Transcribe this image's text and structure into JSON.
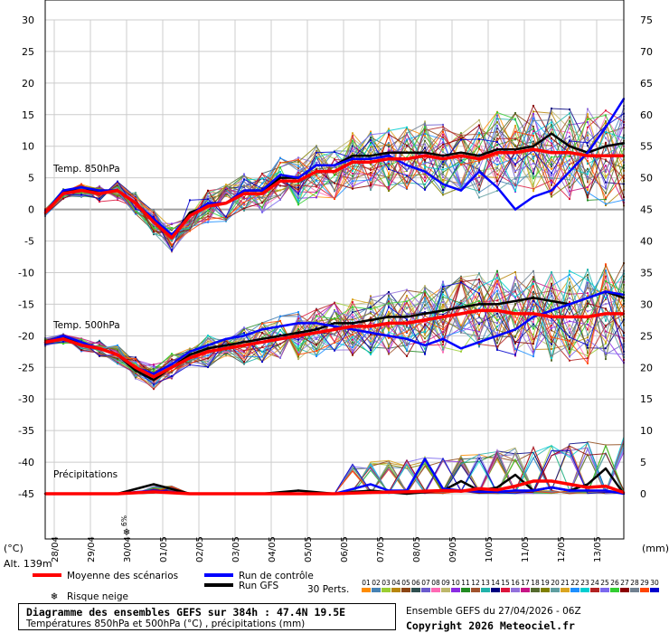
{
  "chart_data": {
    "type": "line",
    "title": "Diagramme des ensembles GEFS sur 384h : 47.4N 19.5E",
    "subtitle": "Températures 850hPa et 500hPa (°C) , précipitations (mm)",
    "run_info": "Ensemble GEFS du 27/04/2026 - 06Z",
    "copyright": "Copyright 2026 Meteociel.fr",
    "left_axis": {
      "unit_label": "(°C)",
      "ticks": [
        "30",
        "25",
        "20",
        "15",
        "10",
        "5",
        "0",
        "-5",
        "-10",
        "-15",
        "-20",
        "-25",
        "-30",
        "-35",
        "-40",
        "-45"
      ],
      "ylim": [
        -45,
        30
      ]
    },
    "right_axis": {
      "unit_label": "(mm)",
      "ticks": [
        "75",
        "70",
        "65",
        "60",
        "55",
        "50",
        "45",
        "40",
        "35",
        "30",
        "25",
        "20",
        "15",
        "10",
        "5",
        "0"
      ],
      "ylim": [
        0,
        75
      ]
    },
    "altitude_label": "Alt. 139m",
    "x_dates": [
      "28/04",
      "29/04",
      "30/04",
      "01/05",
      "02/05",
      "03/05",
      "04/05",
      "05/05",
      "06/05",
      "07/05",
      "08/05",
      "09/05",
      "10/05",
      "11/05",
      "12/05",
      "13/05"
    ],
    "x_start_hour": 6,
    "x_step_hours": 6,
    "section_labels": {
      "t850": "Temp. 850hPa",
      "t500": "Temp. 500hPa",
      "precip": "Précipitations"
    },
    "snow_risk_value": "6%",
    "snow_risk_date": "30/04",
    "legend": {
      "mean": "Moyenne des scénarios",
      "control": "Run de contrôle",
      "gfs": "Run GFS",
      "snow": "Risque neige",
      "perts": "30 Perts."
    },
    "pert_ids": [
      "01",
      "02",
      "03",
      "04",
      "05",
      "06",
      "07",
      "08",
      "09",
      "10",
      "11",
      "12",
      "13",
      "14",
      "15",
      "16",
      "17",
      "18",
      "19",
      "20",
      "21",
      "22",
      "23",
      "24",
      "25",
      "26",
      "27",
      "28",
      "29",
      "30"
    ],
    "pert_colors": [
      "#ff8c00",
      "#4682b4",
      "#9acd32",
      "#b8860b",
      "#8b4513",
      "#2f4f4f",
      "#6a5acd",
      "#ff69b4",
      "#bdb76b",
      "#8a2be2",
      "#228b22",
      "#a0522d",
      "#20b2aa",
      "#000080",
      "#dc143c",
      "#9370db",
      "#c71585",
      "#556b2f",
      "#808000",
      "#5f9ea0",
      "#daa520",
      "#1e90ff",
      "#00ced1",
      "#b22222",
      "#7b68ee",
      "#32cd32",
      "#8b0000",
      "#708090",
      "#ff4500",
      "#0000cd"
    ],
    "colors": {
      "mean": "#ff0000",
      "control": "#0000ff",
      "gfs": "#000000",
      "grid": "#cccccc",
      "zero": "#a0a0a0"
    },
    "series": [
      {
        "name": "Moyenne des scénarios",
        "type": "t850",
        "x": [
          0,
          12,
          24,
          36,
          48,
          60,
          72,
          84,
          96,
          108,
          120,
          132,
          144,
          156,
          168,
          180,
          192,
          204,
          216,
          228,
          240,
          252,
          264,
          276,
          288,
          300,
          312,
          324,
          336,
          348,
          360,
          372,
          384
        ],
        "values": [
          -0.5,
          2.5,
          3,
          2.5,
          3,
          1,
          -2,
          -4.5,
          -1,
          0.5,
          1,
          2.5,
          2.5,
          4.5,
          4.5,
          6,
          6,
          7.5,
          7.5,
          8,
          8,
          8.5,
          8,
          8.5,
          8,
          9,
          9,
          9.5,
          9,
          9,
          8.5,
          8.5,
          8.5
        ]
      },
      {
        "name": "Run de contrôle",
        "type": "t850",
        "x": [
          0,
          12,
          24,
          36,
          48,
          60,
          72,
          84,
          96,
          108,
          120,
          132,
          144,
          156,
          168,
          180,
          192,
          204,
          216,
          228,
          240,
          252,
          264,
          276,
          288,
          300,
          312,
          324,
          336,
          348,
          360,
          372,
          384
        ],
        "values": [
          -0.5,
          3,
          3.5,
          3,
          3,
          1,
          -1.5,
          -4,
          -1,
          1,
          1,
          3,
          3,
          5.5,
          5,
          7,
          7,
          8,
          8,
          8.5,
          7,
          6,
          4,
          3,
          6,
          3.5,
          0,
          2,
          3,
          6,
          9,
          13,
          17.5
        ]
      },
      {
        "name": "Run GFS",
        "type": "t850",
        "x": [
          0,
          12,
          24,
          36,
          48,
          60,
          72,
          84,
          96,
          108,
          120,
          132,
          144,
          156,
          168,
          180,
          192,
          204,
          216,
          228,
          240,
          252,
          264,
          276,
          288,
          300,
          312,
          324,
          336,
          348,
          360,
          372,
          384
        ],
        "values": [
          -0.5,
          3,
          3,
          3,
          3,
          1,
          -2,
          -4.5,
          -0.5,
          0.5,
          1,
          3,
          3,
          5,
          5,
          7,
          7,
          8.5,
          8.5,
          9,
          9,
          9,
          8.5,
          9,
          8.5,
          9.5,
          9.5,
          10,
          12,
          10,
          9,
          10,
          10.5
        ]
      },
      {
        "name": "Moyenne des scénarios",
        "type": "t500",
        "x": [
          0,
          12,
          24,
          36,
          48,
          60,
          72,
          84,
          96,
          108,
          120,
          132,
          144,
          156,
          168,
          180,
          192,
          204,
          216,
          228,
          240,
          252,
          264,
          276,
          288,
          300,
          312,
          324,
          336,
          348,
          360,
          372,
          384
        ],
        "values": [
          -21,
          -20.5,
          -21.5,
          -22,
          -23,
          -25,
          -26.5,
          -25,
          -23.5,
          -22.5,
          -22,
          -21.5,
          -21,
          -20.5,
          -20,
          -19.5,
          -19,
          -18.5,
          -18.5,
          -18,
          -18,
          -17.5,
          -17,
          -16.5,
          -16,
          -16,
          -16.5,
          -16.5,
          -17,
          -17,
          -17,
          -16.5,
          -16.5
        ]
      },
      {
        "name": "Run de contrôle",
        "type": "t500",
        "x": [
          0,
          12,
          24,
          36,
          48,
          60,
          72,
          84,
          96,
          108,
          120,
          132,
          144,
          156,
          168,
          180,
          192,
          204,
          216,
          228,
          240,
          252,
          264,
          276,
          288,
          300,
          312,
          324,
          336,
          348,
          360,
          372,
          384
        ],
        "values": [
          -21,
          -20,
          -21,
          -22,
          -23,
          -25,
          -26,
          -24.5,
          -22.5,
          -21.5,
          -20.5,
          -20,
          -19,
          -18.5,
          -18,
          -18,
          -18.5,
          -19,
          -19.5,
          -20,
          -20.5,
          -21.5,
          -20.5,
          -22,
          -21,
          -20,
          -19,
          -17,
          -16,
          -15,
          -14,
          -13,
          -13.5
        ]
      },
      {
        "name": "Run GFS",
        "type": "t500",
        "x": [
          0,
          12,
          24,
          36,
          48,
          60,
          72,
          84,
          96,
          108,
          120,
          132,
          144,
          156,
          168,
          180,
          192,
          204,
          216,
          228,
          240,
          252,
          264,
          276,
          288,
          300,
          312,
          324,
          336,
          348,
          360,
          372,
          384
        ],
        "values": [
          -21,
          -20,
          -21.5,
          -22,
          -23,
          -25.5,
          -27,
          -25,
          -23,
          -22,
          -21.5,
          -21,
          -20.5,
          -20,
          -19.5,
          -19,
          -18,
          -18,
          -17.5,
          -17,
          -17,
          -16.5,
          -16,
          -15.5,
          -15,
          -15,
          -14.5,
          -14,
          -14.5,
          -15,
          -14,
          -13,
          -14
        ]
      },
      {
        "name": "Moyenne des scénarios",
        "type": "precip",
        "x": [
          0,
          24,
          48,
          72,
          96,
          120,
          144,
          168,
          192,
          216,
          240,
          264,
          276,
          288,
          300,
          312,
          324,
          336,
          348,
          360,
          372,
          384
        ],
        "values": [
          0,
          0,
          0,
          0.3,
          0,
          0,
          0,
          0,
          0,
          0.2,
          0.3,
          0.5,
          0.4,
          0.8,
          0.6,
          1.2,
          2,
          2,
          1.5,
          1,
          1.2,
          0.2
        ]
      },
      {
        "name": "Run de contrôle",
        "type": "precip",
        "x": [
          0,
          24,
          48,
          72,
          96,
          120,
          144,
          168,
          192,
          216,
          228,
          240,
          252,
          264,
          276,
          288,
          300,
          312,
          324,
          336,
          348,
          360,
          372,
          384
        ],
        "values": [
          0,
          0,
          0,
          0.5,
          0,
          0,
          0,
          0,
          0,
          1.5,
          0.5,
          0.5,
          5.5,
          0.8,
          0.5,
          0.3,
          0.3,
          0.5,
          0.5,
          1,
          0.5,
          0.5,
          0.5,
          0
        ]
      },
      {
        "name": "Run GFS",
        "type": "precip",
        "x": [
          0,
          24,
          48,
          72,
          96,
          120,
          144,
          168,
          192,
          216,
          240,
          264,
          276,
          288,
          300,
          312,
          324,
          336,
          348,
          360,
          372,
          384
        ],
        "values": [
          0,
          0,
          0,
          1.5,
          0,
          0,
          0,
          0.5,
          0,
          0.5,
          0,
          0.5,
          2,
          0.5,
          1,
          3,
          0.5,
          1,
          0.5,
          1.5,
          4,
          0
        ]
      }
    ]
  }
}
